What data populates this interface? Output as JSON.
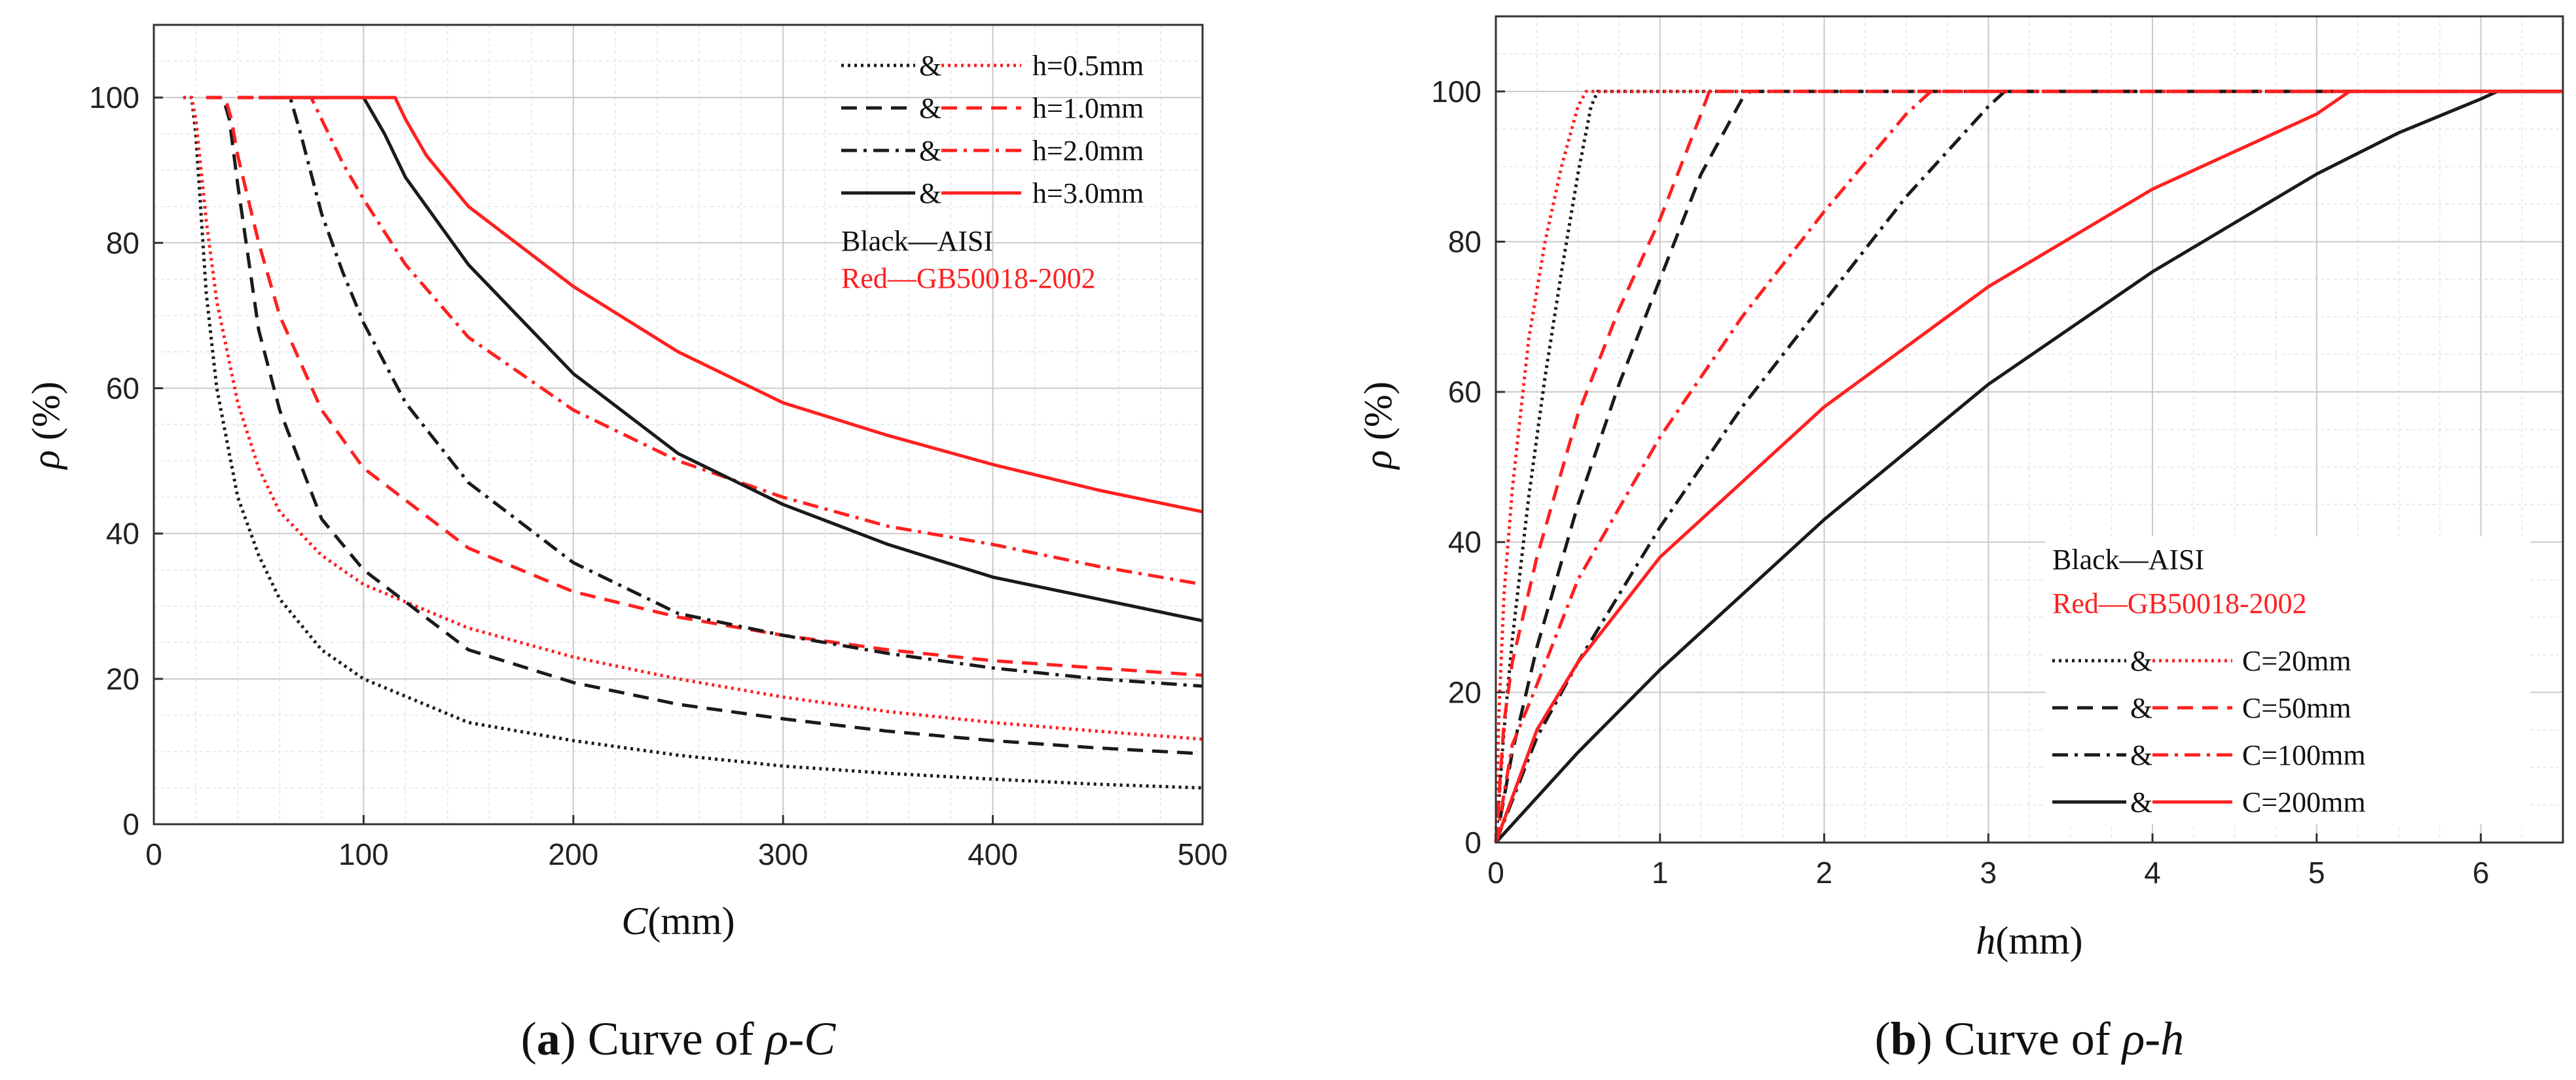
{
  "chart_data": [
    {
      "id": "a",
      "type": "line",
      "caption_letter": "a",
      "caption_prefix": ") Curve of ",
      "caption_math": "ρ-C",
      "xlabel_var": "C",
      "xlabel_unit": "(mm)",
      "ylabel_var": "ρ",
      "ylabel_unit": " (%)",
      "xlim": [
        0,
        500
      ],
      "ylim": [
        0,
        110
      ],
      "xticks": [
        0,
        100,
        200,
        300,
        400,
        500
      ],
      "yticks": [
        0,
        20,
        40,
        60,
        80,
        100
      ],
      "xminor": 20,
      "yminor": 5,
      "grid": true,
      "annotation_black": "Black—AISI",
      "annotation_red": "Red—GB50018-2002",
      "legend_amp": "&",
      "legend": [
        "h=0.5mm",
        "h=1.0mm",
        "h=2.0mm",
        "h=3.0mm"
      ],
      "series": [
        {
          "name": "h=0.5mm AISI",
          "color": "#1a1a1a",
          "dash": "dotted",
          "x": [
            14,
            18,
            20,
            25,
            30,
            40,
            50,
            60,
            80,
            100,
            150,
            200,
            250,
            300,
            350,
            400,
            450,
            500
          ],
          "y": [
            100,
            100,
            95,
            73,
            60,
            45,
            37,
            31,
            24,
            20,
            14,
            11.5,
            9.5,
            8,
            7,
            6.2,
            5.5,
            5
          ]
        },
        {
          "name": "h=0.5mm GB50018-2002",
          "color": "#ff2020",
          "dash": "dotted",
          "x": [
            14,
            18,
            20,
            25,
            30,
            40,
            50,
            60,
            80,
            100,
            150,
            200,
            250,
            300,
            350,
            400,
            450,
            500
          ],
          "y": [
            100,
            100,
            97,
            83,
            72,
            58,
            49,
            43,
            37,
            33,
            27,
            23,
            20,
            17.5,
            15.5,
            14,
            12.8,
            11.7
          ]
        },
        {
          "name": "h=1.0mm AISI",
          "color": "#1a1a1a",
          "dash": "dashed",
          "x": [
            25,
            33,
            36,
            40,
            50,
            60,
            80,
            100,
            150,
            200,
            250,
            300,
            350,
            400,
            450,
            500
          ],
          "y": [
            100,
            100,
            97,
            88,
            68,
            57,
            42,
            35,
            24,
            19.5,
            16.5,
            14.5,
            12.8,
            11.5,
            10.5,
            9.7
          ]
        },
        {
          "name": "h=1.0mm GB50018-2002",
          "color": "#ff2020",
          "dash": "dashed",
          "x": [
            25,
            34,
            37,
            40,
            50,
            60,
            80,
            100,
            150,
            200,
            250,
            300,
            350,
            400,
            450,
            500
          ],
          "y": [
            100,
            100,
            97,
            92,
            80,
            70,
            57,
            49,
            38,
            32,
            28.5,
            26,
            24,
            22.5,
            21.5,
            20.5
          ]
        },
        {
          "name": "h=2.0mm AISI",
          "color": "#1a1a1a",
          "dash": "dashdot",
          "x": [
            40,
            65,
            70,
            80,
            90,
            100,
            120,
            150,
            200,
            250,
            300,
            350,
            400,
            450,
            500
          ],
          "y": [
            100,
            100,
            95,
            84,
            76,
            69,
            58,
            47,
            36,
            29,
            26,
            23.5,
            21.5,
            20,
            19
          ]
        },
        {
          "name": "h=2.0mm GB50018-2002",
          "color": "#ff2020",
          "dash": "dashdot",
          "x": [
            40,
            75,
            80,
            90,
            100,
            120,
            150,
            200,
            250,
            300,
            350,
            400,
            450,
            500
          ],
          "y": [
            100,
            100,
            97,
            91,
            86,
            77,
            67,
            57,
            50,
            45,
            41,
            38.5,
            35.5,
            33
          ]
        },
        {
          "name": "h=3.0mm AISI",
          "color": "#1a1a1a",
          "dash": "solid",
          "x": [
            50,
            100,
            110,
            120,
            150,
            200,
            250,
            300,
            350,
            400,
            450,
            500
          ],
          "y": [
            100,
            100,
            95,
            89,
            77,
            62,
            51,
            44,
            38.5,
            34,
            31,
            28
          ]
        },
        {
          "name": "h=3.0mm GB50018-2002",
          "color": "#ff2020",
          "dash": "solid",
          "x": [
            50,
            115,
            120,
            130,
            150,
            200,
            250,
            300,
            350,
            400,
            450,
            500
          ],
          "y": [
            100,
            100,
            97,
            92,
            85,
            74,
            65,
            58,
            53.5,
            49.5,
            46,
            43
          ]
        }
      ]
    },
    {
      "id": "b",
      "type": "line",
      "caption_letter": "b",
      "caption_prefix": ") Curve of ",
      "caption_math": "ρ-h",
      "xlabel_var": "h",
      "xlabel_unit": "(mm)",
      "ylabel_var": "ρ",
      "ylabel_unit": " (%)",
      "xlim": [
        0,
        6.5
      ],
      "ylim": [
        0,
        110
      ],
      "xticks": [
        0,
        1,
        2,
        3,
        4,
        5,
        6
      ],
      "yticks": [
        0,
        20,
        40,
        60,
        80,
        100
      ],
      "xminor": 0.25,
      "yminor": 5,
      "grid": true,
      "annotation_black": "Black—AISI",
      "annotation_red": "Red—GB50018-2002",
      "legend_amp": "&",
      "legend": [
        "C=20mm",
        "C=50mm",
        "C=100mm",
        "C=200mm"
      ],
      "series": [
        {
          "name": "C=20mm AISI",
          "color": "#1a1a1a",
          "dash": "dotted",
          "x": [
            0,
            0.05,
            0.1,
            0.2,
            0.3,
            0.4,
            0.5,
            0.58,
            0.62,
            6.5
          ],
          "y": [
            0,
            15,
            27,
            46,
            62,
            76,
            89,
            98,
            100,
            100
          ]
        },
        {
          "name": "C=20mm GB50018-2002",
          "color": "#ff2020",
          "dash": "dotted",
          "x": [
            0,
            0.02,
            0.05,
            0.1,
            0.2,
            0.3,
            0.4,
            0.5,
            0.55,
            6.5
          ],
          "y": [
            0,
            18,
            33,
            47,
            67,
            80,
            90,
            98,
            100,
            100
          ]
        },
        {
          "name": "C=50mm AISI",
          "color": "#1a1a1a",
          "dash": "dashed",
          "x": [
            0,
            0.1,
            0.25,
            0.5,
            0.75,
            1.0,
            1.25,
            1.5,
            1.55,
            6.5
          ],
          "y": [
            0,
            12,
            26,
            45,
            61,
            75,
            89,
            99,
            100,
            100
          ]
        },
        {
          "name": "C=50mm GB50018-2002",
          "color": "#ff2020",
          "dash": "dashed",
          "x": [
            0,
            0.05,
            0.1,
            0.25,
            0.5,
            0.75,
            1.0,
            1.25,
            1.3,
            6.5
          ],
          "y": [
            0,
            16,
            24,
            38,
            57,
            71,
            83,
            97,
            100,
            100
          ]
        },
        {
          "name": "C=100mm AISI",
          "color": "#1a1a1a",
          "dash": "dashdot",
          "x": [
            0,
            0.25,
            0.5,
            1.0,
            1.5,
            2.0,
            2.5,
            3.0,
            3.1,
            6.5
          ],
          "y": [
            0,
            14,
            24,
            42,
            58,
            72,
            86,
            98,
            100,
            100
          ]
        },
        {
          "name": "C=100mm GB50018-2002",
          "color": "#ff2020",
          "dash": "dashdot",
          "x": [
            0,
            0.1,
            0.25,
            0.5,
            1.0,
            1.5,
            2.0,
            2.5,
            2.65,
            6.5
          ],
          "y": [
            0,
            13,
            21,
            35,
            54,
            70,
            84,
            97,
            100,
            100
          ]
        },
        {
          "name": "C=200mm AISI",
          "color": "#1a1a1a",
          "dash": "solid",
          "x": [
            0,
            0.5,
            1.0,
            2.0,
            3.0,
            4.0,
            5.0,
            5.5,
            6.0,
            6.1,
            6.5
          ],
          "y": [
            0,
            12,
            23,
            43,
            61,
            76,
            89,
            94.5,
            99,
            100,
            100
          ]
        },
        {
          "name": "C=200mm GB50018-2002",
          "color": "#ff2020",
          "dash": "solid",
          "x": [
            0,
            0.25,
            0.5,
            1.0,
            2.0,
            3.0,
            4.0,
            5.0,
            5.2,
            6.5
          ],
          "y": [
            0,
            15,
            24,
            38,
            58,
            74,
            87,
            97,
            100,
            100
          ]
        }
      ]
    }
  ]
}
